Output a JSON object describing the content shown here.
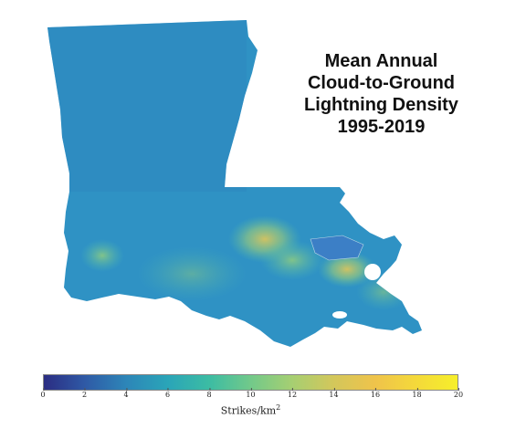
{
  "title": {
    "line1": "Mean Annual",
    "line2": "Cloud-to-Ground",
    "line3": "Lightning Density",
    "line4": "1995-2019"
  },
  "colorbar": {
    "label_text": "Strikes/km",
    "label_exponent": "2",
    "min": 0,
    "max": 20,
    "ticks": [
      "0",
      "2",
      "4",
      "6",
      "8",
      "10",
      "12",
      "14",
      "16",
      "18",
      "20"
    ],
    "colormap": "viridis-like",
    "colors": [
      "#2b2d82",
      "#2f5aa6",
      "#2d86b8",
      "#2aa5b8",
      "#3cbca3",
      "#72c98a",
      "#a6cf72",
      "#d3c75b",
      "#efc34b",
      "#f4d93a",
      "#f6ef2a"
    ]
  },
  "map": {
    "base_color": "#2f92c4",
    "highlight_colors": [
      "#5cc2a2",
      "#9fce78",
      "#d8c45e"
    ]
  }
}
